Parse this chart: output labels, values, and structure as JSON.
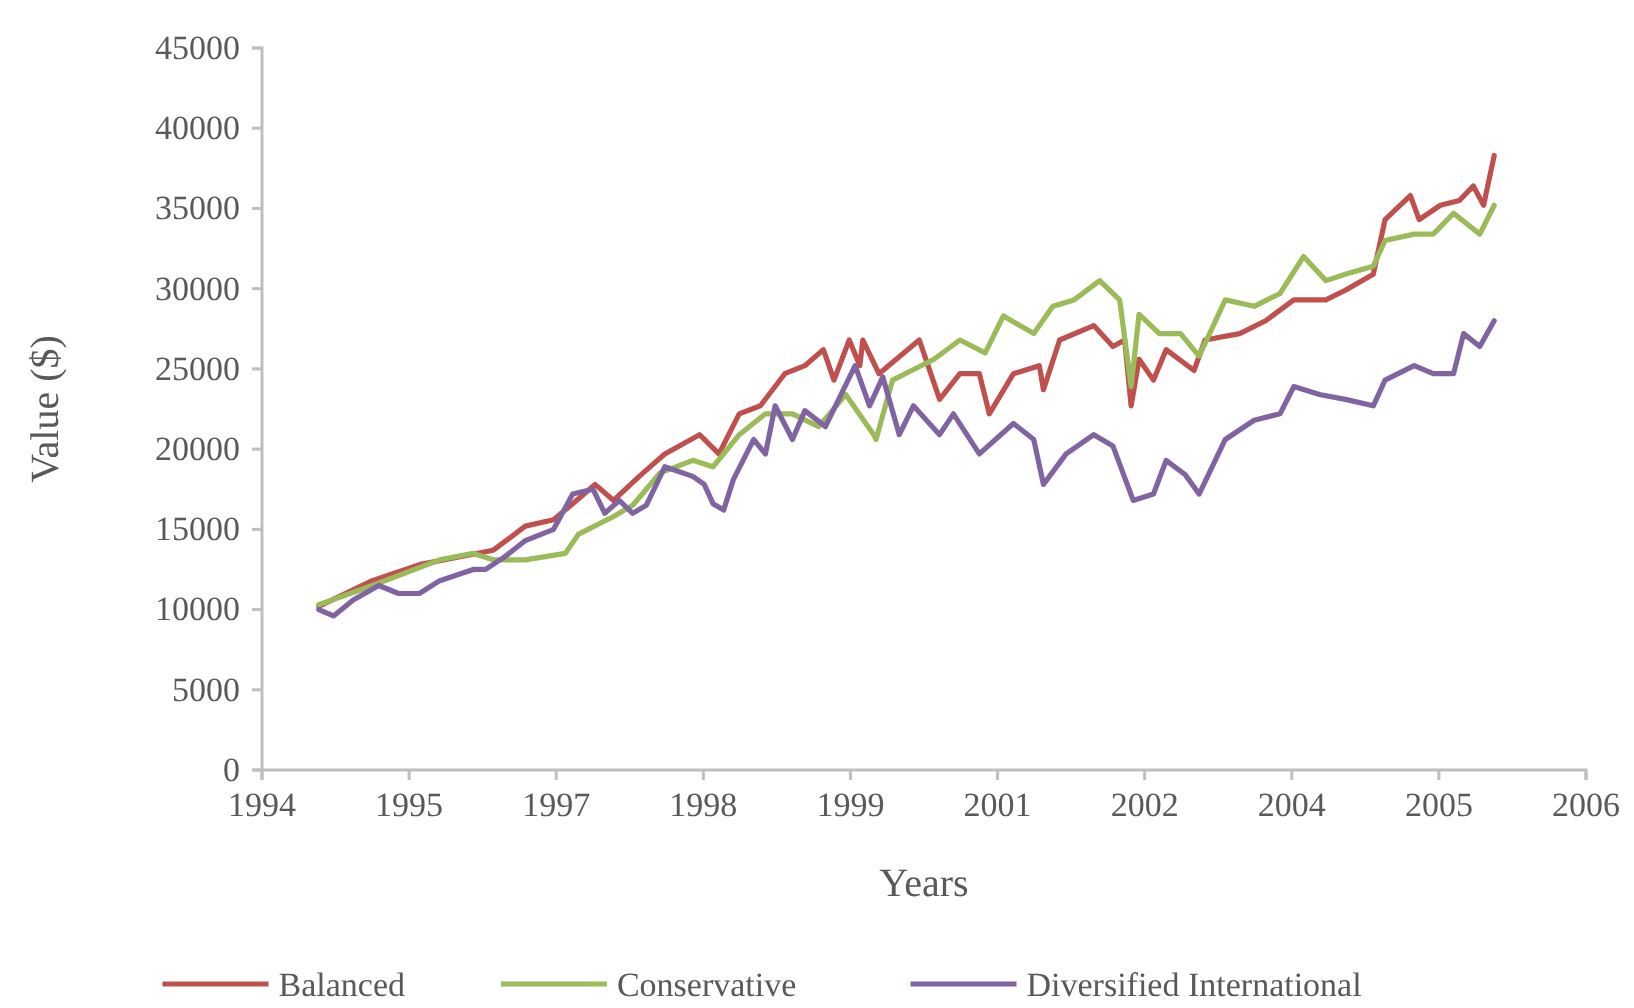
{
  "chart_data": {
    "type": "line",
    "xlabel": "Years",
    "ylabel": "Value ($)",
    "xlim": [
      "1994-06-15",
      "2006-10-10"
    ],
    "xticks": [
      {
        "value": "1994-06-15",
        "label": "1994"
      },
      {
        "value": "1995-10-28",
        "label": "1995"
      },
      {
        "value": "1997-03-11",
        "label": "1997"
      },
      {
        "value": "1998-07-24",
        "label": "1998"
      },
      {
        "value": "1999-12-06",
        "label": "1999"
      },
      {
        "value": "2001-04-19",
        "label": "2001"
      },
      {
        "value": "2002-09-01",
        "label": "2002"
      },
      {
        "value": "2004-01-14",
        "label": "2004"
      },
      {
        "value": "2005-05-28",
        "label": "2005"
      },
      {
        "value": "2006-10-10",
        "label": "2006"
      }
    ],
    "ylim": [
      0,
      45000
    ],
    "yticks": [
      0,
      5000,
      10000,
      15000,
      20000,
      25000,
      30000,
      35000,
      40000,
      45000
    ],
    "grid": false,
    "legend": "bottom",
    "marker": "none",
    "line_style": "solid",
    "series": [
      {
        "name": "Balanced",
        "color": "#c0504d",
        "x": [
          "1994-12-25",
          "1995-06-25",
          "1995-12-02",
          "1996-08-09",
          "1996-11-26",
          "1997-03-02",
          "1997-05-06",
          "1997-07-21",
          "1997-09-22",
          "1997-12-18",
          "1998-03-15",
          "1998-07-11",
          "1998-09-15",
          "1998-11-23",
          "1999-02-03",
          "1999-04-27",
          "1999-07-04",
          "1999-09-05",
          "1999-10-11",
          "1999-12-02",
          "2000-01-07",
          "2000-01-17",
          "2000-03-12",
          "2000-07-27",
          "2000-10-04",
          "2000-12-12",
          "2001-02-16",
          "2001-03-22",
          "2001-06-12",
          "2001-09-08",
          "2001-09-22",
          "2001-11-16",
          "2002-03-12",
          "2002-05-16",
          "2002-06-25",
          "2002-07-17",
          "2002-08-13",
          "2002-10-01",
          "2002-11-13",
          "2003-02-16",
          "2003-03-25",
          "2003-07-21",
          "2003-10-17",
          "2004-01-21",
          "2004-05-09",
          "2004-07-14",
          "2004-10-17",
          "2004-11-26",
          "2005-02-20",
          "2005-03-22",
          "2005-06-02",
          "2005-08-06",
          "2005-09-22",
          "2005-10-27",
          "2005-12-02"
        ],
        "values": [
          10200,
          11800,
          12800,
          13700,
          15200,
          15600,
          16600,
          17800,
          16800,
          18300,
          19700,
          20900,
          19700,
          22200,
          22700,
          24700,
          25200,
          26200,
          24300,
          26800,
          25200,
          26800,
          24700,
          26800,
          23100,
          24700,
          24700,
          22200,
          24700,
          25200,
          23700,
          26800,
          27700,
          26400,
          26800,
          22700,
          25600,
          24300,
          26200,
          24900,
          26800,
          27200,
          28000,
          29300,
          29300,
          29900,
          30900,
          34300,
          35800,
          34300,
          35200,
          35500,
          36400,
          35200,
          38300
        ]
      },
      {
        "name": "Conservative",
        "color": "#9bbb59",
        "x": [
          "1994-12-25",
          "1995-06-25",
          "1996-02-09",
          "1996-06-02",
          "1996-08-09",
          "1996-11-26",
          "1997-04-11",
          "1997-05-26",
          "1997-09-22",
          "1997-11-26",
          "1998-02-26",
          "1998-06-18",
          "1998-08-26",
          "1998-11-23",
          "1999-02-20",
          "1999-05-23",
          "1999-08-20",
          "1999-11-20",
          "2000-02-23",
          "2000-03-02",
          "2000-04-27",
          "2000-09-15",
          "2000-12-12",
          "2001-03-08",
          "2001-05-09",
          "2001-08-20",
          "2001-10-24",
          "2002-01-04",
          "2002-04-01",
          "2002-06-08",
          "2002-07-17",
          "2002-08-13",
          "2002-10-21",
          "2003-01-01",
          "2003-03-05",
          "2003-06-02",
          "2003-09-08",
          "2003-12-05",
          "2004-02-23",
          "2004-05-09",
          "2004-07-14",
          "2004-10-17",
          "2004-11-26",
          "2005-03-05",
          "2005-05-09",
          "2005-07-17",
          "2005-10-14",
          "2005-12-02"
        ],
        "values": [
          10300,
          11500,
          13100,
          13500,
          13100,
          13100,
          13500,
          14700,
          15800,
          16500,
          18500,
          19300,
          18900,
          20900,
          22200,
          22200,
          21400,
          23400,
          20900,
          20600,
          24300,
          25600,
          26800,
          26000,
          28300,
          27200,
          28900,
          29300,
          30500,
          29300,
          23900,
          28400,
          27200,
          27200,
          25800,
          29300,
          28900,
          29700,
          32000,
          30500,
          30900,
          31400,
          33000,
          33400,
          33400,
          34700,
          33400,
          35200
        ]
      },
      {
        "name": "Diversified International",
        "color": "#8064a2",
        "x": [
          "1994-12-25",
          "1995-02-13",
          "1995-04-21",
          "1995-07-17",
          "1995-09-22",
          "1995-12-02",
          "1996-02-09",
          "1996-06-02",
          "1996-07-14",
          "1996-09-18",
          "1996-11-26",
          "1997-03-02",
          "1997-05-06",
          "1997-07-14",
          "1997-08-23",
          "1997-10-11",
          "1997-11-26",
          "1998-01-11",
          "1998-03-15",
          "1998-06-18",
          "1998-07-27",
          "1998-08-26",
          "1998-10-01",
          "1998-11-03",
          "1999-01-11",
          "1999-02-20",
          "1999-03-25",
          "1999-05-23",
          "1999-07-04",
          "1999-09-12",
          "1999-10-27",
          "1999-12-22",
          "2000-02-09",
          "2000-03-25",
          "2000-05-20",
          "2000-07-07",
          "2000-10-04",
          "2000-11-20",
          "2001-02-16",
          "2001-06-12",
          "2001-08-20",
          "2001-09-22",
          "2001-12-08",
          "2002-03-12",
          "2002-05-16",
          "2002-07-24",
          "2002-10-01",
          "2002-11-13",
          "2003-01-17",
          "2003-03-05",
          "2003-06-02",
          "2003-09-08",
          "2003-12-05",
          "2004-01-21",
          "2004-04-17",
          "2004-07-14",
          "2004-10-17",
          "2004-11-26",
          "2005-03-05",
          "2005-05-09",
          "2005-07-17",
          "2005-08-20",
          "2005-10-14",
          "2005-12-02"
        ],
        "values": [
          10000,
          9600,
          10600,
          11500,
          11000,
          11000,
          11800,
          12500,
          12500,
          13300,
          14300,
          15000,
          17200,
          17500,
          16000,
          16800,
          16000,
          16500,
          18900,
          18300,
          17800,
          16600,
          16200,
          18100,
          20600,
          19700,
          22700,
          20600,
          22400,
          21400,
          23100,
          25200,
          22700,
          24500,
          20900,
          22700,
          20900,
          22200,
          19700,
          21600,
          20600,
          17800,
          19700,
          20900,
          20200,
          16800,
          17200,
          19300,
          18400,
          17200,
          20600,
          21800,
          22200,
          23900,
          23400,
          23100,
          22700,
          24300,
          25200,
          24700,
          24700,
          27200,
          26400,
          28000
        ]
      }
    ]
  }
}
